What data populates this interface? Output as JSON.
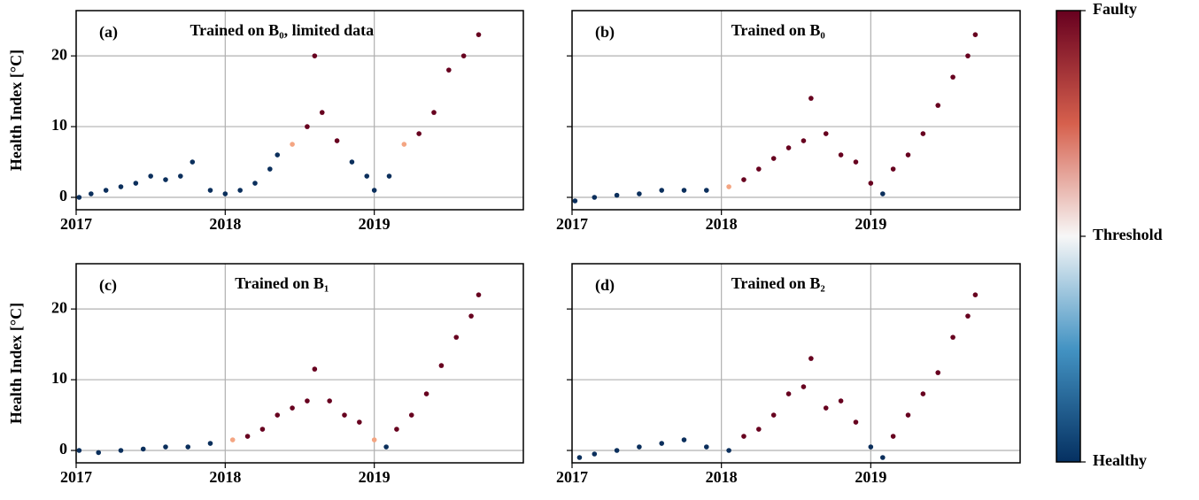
{
  "chart_data": [
    {
      "type": "scatter",
      "label": "(a)",
      "title": "Trained on B₀, limited data",
      "ylabel": "Health Index [°C]",
      "x": [
        2017.02,
        2017.1,
        2017.2,
        2017.3,
        2017.4,
        2017.5,
        2017.6,
        2017.7,
        2017.78,
        2017.9,
        2018.0,
        2018.1,
        2018.2,
        2018.3,
        2018.35,
        2018.45,
        2018.55,
        2018.6,
        2018.65,
        2018.75,
        2018.85,
        2018.95,
        2019.0,
        2019.1,
        2019.2,
        2019.3,
        2019.4,
        2019.5,
        2019.6,
        2019.7
      ],
      "values": [
        0,
        0.5,
        1,
        1.5,
        2,
        3,
        2.5,
        3,
        5,
        1,
        0.5,
        1,
        2,
        4,
        6,
        7.5,
        10,
        20,
        12,
        8,
        5,
        3,
        1,
        3,
        7.5,
        9,
        12,
        18,
        20,
        23
      ],
      "colors": [
        "#0b2f5c",
        "#0b2f5c",
        "#0b2f5c",
        "#0b2f5c",
        "#0b2f5c",
        "#0b2f5c",
        "#0b2f5c",
        "#0b2f5c",
        "#0b2f5c",
        "#0b2f5c",
        "#0b2f5c",
        "#0b2f5c",
        "#0b2f5c",
        "#0b2f5c",
        "#0b2f5c",
        "#f4a582",
        "#67001f",
        "#67001f",
        "#67001f",
        "#67001f",
        "#0b2f5c",
        "#0b2f5c",
        "#0b2f5c",
        "#0b2f5c",
        "#f4a582",
        "#67001f",
        "#67001f",
        "#67001f",
        "#67001f",
        "#67001f"
      ],
      "xlim": [
        2017,
        2020
      ],
      "xticks": [
        2017,
        2018,
        2019
      ],
      "ylim": [
        -1.75,
        26.4
      ],
      "yticks": [
        0,
        10,
        20
      ],
      "grid": true,
      "show_ytick_labels": true
    },
    {
      "type": "scatter",
      "label": "(b)",
      "title": "Trained on B₀",
      "x": [
        2017.02,
        2017.15,
        2017.3,
        2017.45,
        2017.6,
        2017.75,
        2017.9,
        2018.05,
        2018.15,
        2018.25,
        2018.35,
        2018.45,
        2018.55,
        2018.6,
        2018.7,
        2018.8,
        2018.9,
        2019.0,
        2019.08,
        2019.15,
        2019.25,
        2019.35,
        2019.45,
        2019.55,
        2019.65,
        2019.7
      ],
      "values": [
        -0.5,
        0,
        0.3,
        0.5,
        1,
        1,
        1,
        1.5,
        2.5,
        4,
        5.5,
        7,
        8,
        14,
        9,
        6,
        5,
        2,
        0.5,
        4,
        6,
        9,
        13,
        17,
        20,
        23
      ],
      "colors": [
        "#0b2f5c",
        "#0b2f5c",
        "#0b2f5c",
        "#0b2f5c",
        "#0b2f5c",
        "#0b2f5c",
        "#0b2f5c",
        "#f4a582",
        "#67001f",
        "#67001f",
        "#67001f",
        "#67001f",
        "#67001f",
        "#67001f",
        "#67001f",
        "#67001f",
        "#67001f",
        "#67001f",
        "#0b2f5c",
        "#67001f",
        "#67001f",
        "#67001f",
        "#67001f",
        "#67001f",
        "#67001f",
        "#67001f"
      ],
      "xlim": [
        2017,
        2020
      ],
      "xticks": [
        2017,
        2018,
        2019
      ],
      "ylim": [
        -1.75,
        26.4
      ],
      "yticks": [
        0,
        10,
        20
      ],
      "grid": true,
      "show_ytick_labels": false
    },
    {
      "type": "scatter",
      "label": "(c)",
      "title": "Trained on B₁",
      "ylabel": "Health Index [°C]",
      "x": [
        2017.02,
        2017.15,
        2017.3,
        2017.45,
        2017.6,
        2017.75,
        2017.9,
        2018.05,
        2018.15,
        2018.25,
        2018.35,
        2018.45,
        2018.55,
        2018.6,
        2018.7,
        2018.8,
        2018.9,
        2019.0,
        2019.08,
        2019.15,
        2019.25,
        2019.35,
        2019.45,
        2019.55,
        2019.65,
        2019.7
      ],
      "values": [
        0,
        -0.3,
        0,
        0.2,
        0.5,
        0.5,
        1,
        1.5,
        2,
        3,
        5,
        6,
        7,
        11.5,
        7,
        5,
        4,
        1.5,
        0.5,
        3,
        5,
        8,
        12,
        16,
        19,
        22
      ],
      "colors": [
        "#0b2f5c",
        "#0b2f5c",
        "#0b2f5c",
        "#0b2f5c",
        "#0b2f5c",
        "#0b2f5c",
        "#0b2f5c",
        "#f4a582",
        "#67001f",
        "#67001f",
        "#67001f",
        "#67001f",
        "#67001f",
        "#67001f",
        "#67001f",
        "#67001f",
        "#67001f",
        "#f4a582",
        "#0b2f5c",
        "#67001f",
        "#67001f",
        "#67001f",
        "#67001f",
        "#67001f",
        "#67001f",
        "#67001f"
      ],
      "xlim": [
        2017,
        2020
      ],
      "xticks": [
        2017,
        2018,
        2019
      ],
      "ylim": [
        -1.75,
        26.4
      ],
      "yticks": [
        0,
        10,
        20
      ],
      "grid": true,
      "show_ytick_labels": true
    },
    {
      "type": "scatter",
      "label": "(d)",
      "title": "Trained on B₂",
      "x": [
        2017.05,
        2017.15,
        2017.3,
        2017.45,
        2017.6,
        2017.75,
        2017.9,
        2018.05,
        2018.15,
        2018.25,
        2018.35,
        2018.45,
        2018.55,
        2018.6,
        2018.7,
        2018.8,
        2018.9,
        2019.0,
        2019.08,
        2019.15,
        2019.25,
        2019.35,
        2019.45,
        2019.55,
        2019.65,
        2019.7
      ],
      "values": [
        -1,
        -0.5,
        0,
        0.5,
        1,
        1.5,
        0.5,
        0,
        2,
        3,
        5,
        8,
        9,
        13,
        6,
        7,
        4,
        0.5,
        -1,
        2,
        5,
        8,
        11,
        16,
        19,
        22
      ],
      "colors": [
        "#0b2f5c",
        "#0b2f5c",
        "#0b2f5c",
        "#0b2f5c",
        "#0b2f5c",
        "#0b2f5c",
        "#0b2f5c",
        "#0b2f5c",
        "#67001f",
        "#67001f",
        "#67001f",
        "#67001f",
        "#67001f",
        "#67001f",
        "#67001f",
        "#67001f",
        "#67001f",
        "#0b2f5c",
        "#0b2f5c",
        "#67001f",
        "#67001f",
        "#67001f",
        "#67001f",
        "#67001f",
        "#67001f",
        "#67001f"
      ],
      "xlim": [
        2017,
        2020
      ],
      "xticks": [
        2017,
        2018,
        2019
      ],
      "ylim": [
        -1.75,
        26.4
      ],
      "yticks": [
        0,
        10,
        20
      ],
      "grid": true,
      "show_ytick_labels": false
    }
  ],
  "colorbar": {
    "labels": [
      "Faulty",
      "Threshold",
      "Healthy"
    ],
    "colors": [
      "#67001f",
      "#d6604d",
      "#f7f7f7",
      "#4393c3",
      "#053061"
    ]
  }
}
